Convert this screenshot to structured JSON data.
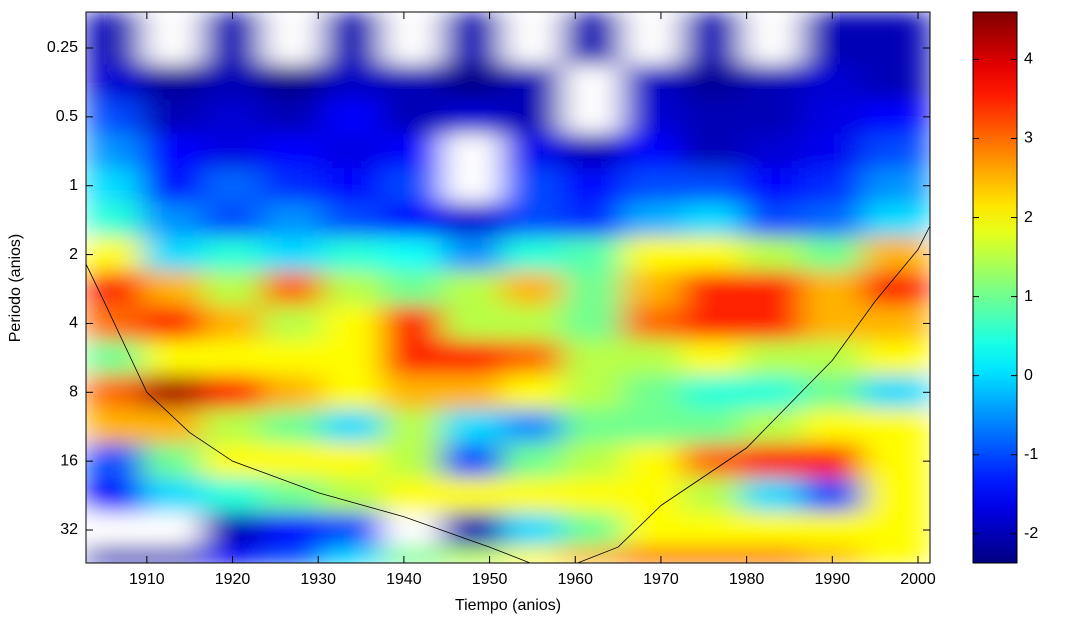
{
  "chart_data": {
    "type": "contour",
    "xlabel": "Tiempo (anios)",
    "ylabel": "Periodo (anios)",
    "colormap": "jet",
    "yscale": "log",
    "y_reversed": true,
    "xlim": [
      1902.9,
      2001.4
    ],
    "ylim": [
      0.174,
      44.6
    ],
    "xticks": [
      1910,
      1920,
      1930,
      1940,
      1950,
      1960,
      1970,
      1980,
      1990,
      2000
    ],
    "yticks": [
      0.25,
      0.5,
      1,
      2,
      4,
      8,
      16,
      32
    ],
    "clim": [
      -2.37,
      4.6
    ],
    "cticks": [
      -2,
      -1,
      0,
      1,
      2,
      3,
      4
    ],
    "x": [
      1906,
      1913,
      1920,
      1927,
      1934,
      1941,
      1948,
      1955,
      1962,
      1969,
      1976,
      1983,
      1990,
      1997
    ],
    "y": [
      0.25,
      0.354,
      0.5,
      0.707,
      1,
      1.414,
      2,
      2.828,
      4,
      5.657,
      8,
      11.31,
      16,
      22.63,
      32,
      45.25
    ],
    "z": [
      [
        -2,
        -2.5,
        -2,
        -2.5,
        -2,
        -2.5,
        -2,
        -2.5,
        -2,
        -2.5,
        -2,
        -2.5,
        -2,
        -2
      ],
      [
        -1.8,
        -2.2,
        -2,
        -2.3,
        -1.9,
        -2,
        -2.3,
        -2,
        -2.4,
        -1.9,
        -2.2,
        -2,
        -1.8,
        -2
      ],
      [
        -1,
        -2,
        -1.8,
        -2,
        -1.5,
        -2,
        -1.8,
        -2,
        -2.4,
        -1.8,
        -2,
        -2,
        -1.7,
        -1.5
      ],
      [
        -0.5,
        -1.5,
        -1.7,
        -1.5,
        -1.7,
        -1.5,
        -2.4,
        -1.6,
        -2,
        -1.5,
        -2,
        -1.8,
        -1.6,
        -1
      ],
      [
        0,
        -1.5,
        -0.8,
        -1.2,
        -1.5,
        -1,
        -2.4,
        -1,
        -1.5,
        -1,
        -1,
        -1.5,
        -1.2,
        -0.5
      ],
      [
        0.5,
        -0.5,
        -1,
        -0.5,
        -1,
        -1.5,
        -1.8,
        -1,
        -1.2,
        -0.3,
        0,
        -1,
        -0.8,
        0
      ],
      [
        2,
        0,
        0.5,
        0,
        0.5,
        0.3,
        -0.5,
        0.5,
        0.8,
        2,
        2,
        1.5,
        1,
        2.5
      ],
      [
        3.5,
        2.5,
        1.5,
        3,
        1.5,
        1,
        1.5,
        2.5,
        1,
        2.5,
        3.5,
        3.5,
        2.5,
        3.5
      ],
      [
        3,
        3.5,
        2.5,
        1.5,
        2,
        3.5,
        1.5,
        1.5,
        1,
        3,
        3.5,
        3.5,
        2.5,
        2.5
      ],
      [
        1,
        2,
        2,
        2,
        2,
        3.5,
        3.5,
        3,
        1.5,
        1.5,
        2,
        1.5,
        1.5,
        2
      ],
      [
        3,
        4.3,
        3.5,
        2.5,
        2,
        2.5,
        2.5,
        2,
        1.5,
        1,
        0.5,
        0.5,
        1,
        0
      ],
      [
        2.5,
        2.5,
        1.5,
        1,
        0,
        1.5,
        0,
        -0.5,
        1,
        1,
        1,
        1.5,
        2,
        2
      ],
      [
        -1,
        1,
        2,
        2,
        2,
        1.5,
        -1,
        1,
        1.5,
        2,
        3,
        3.5,
        3.5,
        2
      ],
      [
        -1.5,
        0,
        0.5,
        1,
        1.5,
        2,
        2,
        2,
        2,
        2,
        1.5,
        0,
        -1,
        2
      ],
      [
        -2.5,
        -2.4,
        -2,
        -1.5,
        -1,
        -2.5,
        -2,
        0,
        1,
        2,
        2,
        2,
        2,
        2
      ],
      [
        -2,
        -2,
        -1.5,
        -1,
        0,
        1,
        1.5,
        2,
        2.5,
        3,
        3,
        3,
        2.5,
        2
      ]
    ],
    "coi": {
      "x": [
        1902.9,
        1905,
        1910,
        1915,
        1920,
        1930,
        1940,
        1950,
        1955,
        1960,
        1965,
        1970,
        1980,
        1990,
        1995,
        2000,
        2001.4
      ],
      "y": [
        2.2,
        3.2,
        8,
        12,
        16,
        22,
        28,
        38,
        45,
        45,
        38,
        25,
        14,
        5.8,
        3.2,
        1.9,
        1.5
      ]
    }
  }
}
